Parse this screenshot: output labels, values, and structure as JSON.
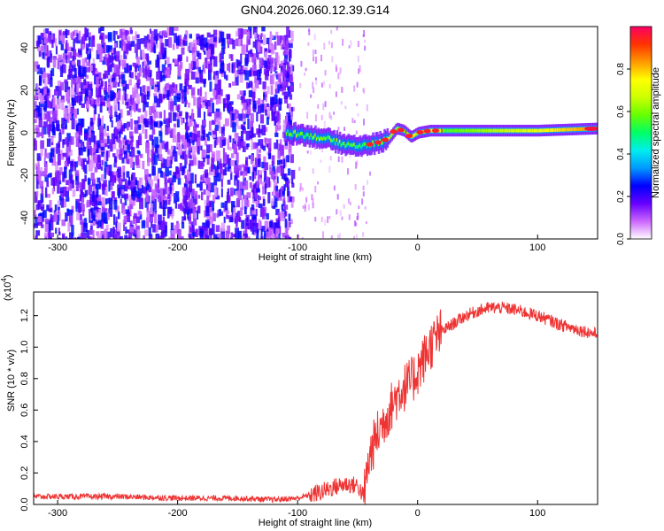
{
  "title": "GN04.2026.060.12.39.G14",
  "chart_data": [
    {
      "type": "heatmap",
      "xlabel": "Height of straight line (km)",
      "ylabel": "Frequency (Hz)",
      "xlim": [
        -320,
        150
      ],
      "ylim": [
        -50,
        50
      ],
      "x_ticks": [
        -300,
        -200,
        -100,
        0,
        100
      ],
      "y_ticks": [
        -40,
        -20,
        0,
        20,
        40
      ],
      "ridge_frequency": [
        {
          "x": -108,
          "f": 0
        },
        {
          "x": -95,
          "f": -1
        },
        {
          "x": -85,
          "f": -2
        },
        {
          "x": -75,
          "f": -3
        },
        {
          "x": -65,
          "f": -5
        },
        {
          "x": -55,
          "f": -6
        },
        {
          "x": -45,
          "f": -6
        },
        {
          "x": -35,
          "f": -5
        },
        {
          "x": -25,
          "f": -3
        },
        {
          "x": -18,
          "f": 2
        },
        {
          "x": -12,
          "f": 1
        },
        {
          "x": -6,
          "f": -2
        },
        {
          "x": 0,
          "f": 0
        },
        {
          "x": 10,
          "f": 1
        },
        {
          "x": 50,
          "f": 1
        },
        {
          "x": 100,
          "f": 1
        },
        {
          "x": 150,
          "f": 2
        }
      ]
    },
    {
      "type": "line",
      "xlabel": "Height of straight line (km)",
      "ylabel": "SNR (10 * v/v)",
      "y_scale_label": "(x10",
      "y_scale_exp": "4",
      "y_scale_close": ")",
      "xlim": [
        -320,
        150
      ],
      "ylim": [
        0,
        1.35
      ],
      "x_ticks": [
        -300,
        -200,
        -100,
        0,
        100
      ],
      "y_ticks": [
        0.0,
        0.2,
        0.4,
        0.6,
        0.8,
        1.0,
        1.2
      ],
      "y_tick_labels": [
        "0.0",
        "0.2",
        "0.4",
        "0.6",
        "0.8",
        "1.0",
        "1.2"
      ],
      "series": [
        {
          "name": "SNR",
          "color": "#ee3333",
          "x": [
            -320,
            -250,
            -200,
            -150,
            -120,
            -100,
            -90,
            -80,
            -70,
            -60,
            -50,
            -45,
            -40,
            -35,
            -30,
            -25,
            -20,
            -15,
            -10,
            -5,
            0,
            5,
            10,
            15,
            20,
            30,
            40,
            50,
            60,
            70,
            80,
            90,
            100,
            110,
            120,
            130,
            140,
            150
          ],
          "y": [
            0.05,
            0.05,
            0.04,
            0.04,
            0.03,
            0.04,
            0.06,
            0.08,
            0.11,
            0.13,
            0.12,
            0.05,
            0.3,
            0.42,
            0.5,
            0.58,
            0.65,
            0.72,
            0.75,
            0.78,
            0.85,
            0.92,
            1.0,
            1.05,
            1.1,
            1.15,
            1.2,
            1.23,
            1.25,
            1.25,
            1.24,
            1.22,
            1.2,
            1.17,
            1.14,
            1.12,
            1.1,
            1.08
          ]
        }
      ]
    }
  ],
  "colorbar": {
    "label": "Normalized spectral amplitude",
    "ticks": [
      0.0,
      0.2,
      0.4,
      0.6,
      0.8
    ],
    "tick_labels": [
      "0.0",
      "0.2",
      "0.4",
      "0.6",
      "0.8"
    ],
    "range": [
      0,
      1
    ],
    "stops": [
      "#ffffff",
      "#cc66ff",
      "#6600ff",
      "#0000ff",
      "#0099ff",
      "#00eeee",
      "#00ff66",
      "#66ff00",
      "#ccff00",
      "#ffff00",
      "#ff9900",
      "#ff3300",
      "#ff0066"
    ]
  }
}
